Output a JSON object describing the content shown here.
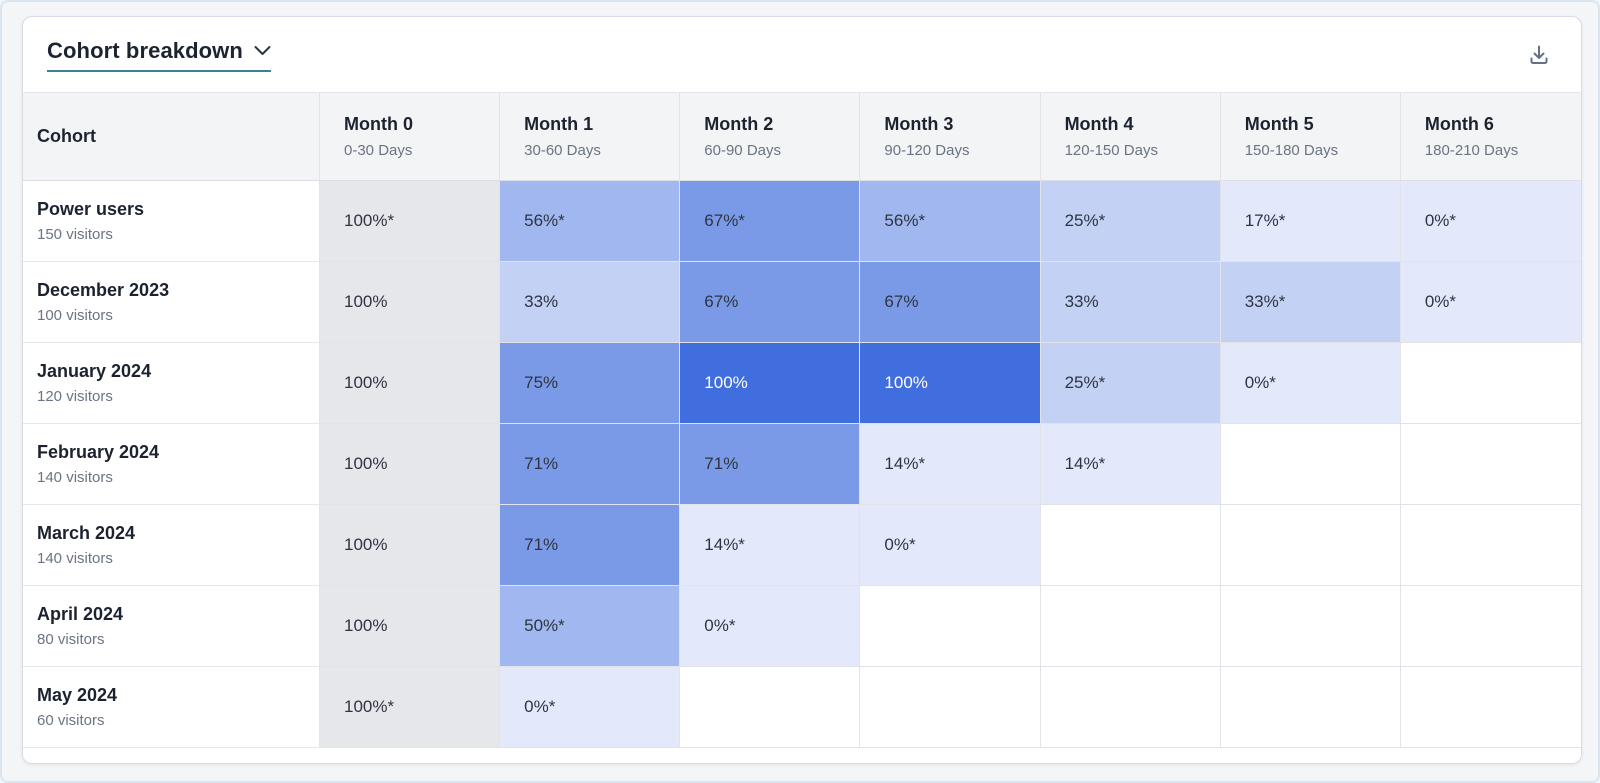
{
  "page": {
    "background": "#f4f5f7"
  },
  "toolbar": {
    "title": "Cohort breakdown",
    "title_underline_color": "#3f7f8e"
  },
  "table": {
    "first_header": "Cohort",
    "columns": [
      {
        "title": "Month 0",
        "sub": "0-30 Days"
      },
      {
        "title": "Month 1",
        "sub": "30-60 Days"
      },
      {
        "title": "Month 2",
        "sub": "60-90 Days"
      },
      {
        "title": "Month 3",
        "sub": "90-120 Days"
      },
      {
        "title": "Month 4",
        "sub": "120-150 Days"
      },
      {
        "title": "Month 5",
        "sub": "150-180 Days"
      },
      {
        "title": "Month 6",
        "sub": "180-210 Days"
      }
    ],
    "rows": [
      {
        "name": "Power users",
        "visitors": "150 visitors",
        "cells": [
          {
            "label": "100%*",
            "pct": 100
          },
          {
            "label": "56%*",
            "pct": 56
          },
          {
            "label": "67%*",
            "pct": 67
          },
          {
            "label": "56%*",
            "pct": 56
          },
          {
            "label": "25%*",
            "pct": 25
          },
          {
            "label": "17%*",
            "pct": 17
          },
          {
            "label": "0%*",
            "pct": 0
          }
        ]
      },
      {
        "name": "December 2023",
        "visitors": "100 visitors",
        "cells": [
          {
            "label": "100%",
            "pct": 100
          },
          {
            "label": "33%",
            "pct": 33
          },
          {
            "label": "67%",
            "pct": 67
          },
          {
            "label": "67%",
            "pct": 67
          },
          {
            "label": "33%",
            "pct": 33
          },
          {
            "label": "33%*",
            "pct": 33
          },
          {
            "label": "0%*",
            "pct": 0
          }
        ]
      },
      {
        "name": "January 2024",
        "visitors": "120 visitors",
        "cells": [
          {
            "label": "100%",
            "pct": 100
          },
          {
            "label": "75%",
            "pct": 75
          },
          {
            "label": "100%",
            "pct": 100
          },
          {
            "label": "100%",
            "pct": 100
          },
          {
            "label": "25%*",
            "pct": 25
          },
          {
            "label": "0%*",
            "pct": 0
          },
          null
        ]
      },
      {
        "name": "February 2024",
        "visitors": "140 visitors",
        "cells": [
          {
            "label": "100%",
            "pct": 100
          },
          {
            "label": "71%",
            "pct": 71
          },
          {
            "label": "71%",
            "pct": 71
          },
          {
            "label": "14%*",
            "pct": 14
          },
          {
            "label": "14%*",
            "pct": 14
          },
          null,
          null
        ]
      },
      {
        "name": "March 2024",
        "visitors": "140 visitors",
        "cells": [
          {
            "label": "100%",
            "pct": 100
          },
          {
            "label": "71%",
            "pct": 71
          },
          {
            "label": "14%*",
            "pct": 14
          },
          {
            "label": "0%*",
            "pct": 0
          },
          null,
          null,
          null
        ]
      },
      {
        "name": "April 2024",
        "visitors": "80 visitors",
        "cells": [
          {
            "label": "100%",
            "pct": 100
          },
          {
            "label": "50%*",
            "pct": 50
          },
          {
            "label": "0%*",
            "pct": 0
          },
          null,
          null,
          null,
          null
        ]
      },
      {
        "name": "May 2024",
        "visitors": "60 visitors",
        "cells": [
          {
            "label": "100%*",
            "pct": 100
          },
          {
            "label": "0%*",
            "pct": 0
          },
          null,
          null,
          null,
          null,
          null
        ]
      }
    ],
    "heatmap": {
      "base_color": "#416ede",
      "month0_bg": "#e6e7eb",
      "bin_alphas": [
        0.15,
        0.32,
        0.5,
        0.7,
        1.0
      ],
      "white_text_threshold": 80
    }
  },
  "chart_data": {
    "type": "heatmap",
    "title": "Cohort breakdown",
    "columns": [
      "Month 0",
      "Month 1",
      "Month 2",
      "Month 3",
      "Month 4",
      "Month 5",
      "Month 6"
    ],
    "column_ranges": [
      "0-30 Days",
      "30-60 Days",
      "60-90 Days",
      "90-120 Days",
      "120-150 Days",
      "150-180 Days",
      "180-210 Days"
    ],
    "cohorts": [
      "Power users",
      "December 2023",
      "January 2024",
      "February 2024",
      "March 2024",
      "April 2024",
      "May 2024"
    ],
    "cohort_sizes": [
      150,
      100,
      120,
      140,
      140,
      80,
      60
    ],
    "values_pct": [
      [
        100,
        56,
        67,
        56,
        25,
        17,
        0
      ],
      [
        100,
        33,
        67,
        67,
        33,
        33,
        0
      ],
      [
        100,
        75,
        100,
        100,
        25,
        0,
        null
      ],
      [
        100,
        71,
        71,
        14,
        14,
        null,
        null
      ],
      [
        100,
        71,
        14,
        0,
        null,
        null,
        null
      ],
      [
        100,
        50,
        0,
        null,
        null,
        null,
        null
      ],
      [
        100,
        0,
        null,
        null,
        null,
        null,
        null
      ]
    ]
  }
}
